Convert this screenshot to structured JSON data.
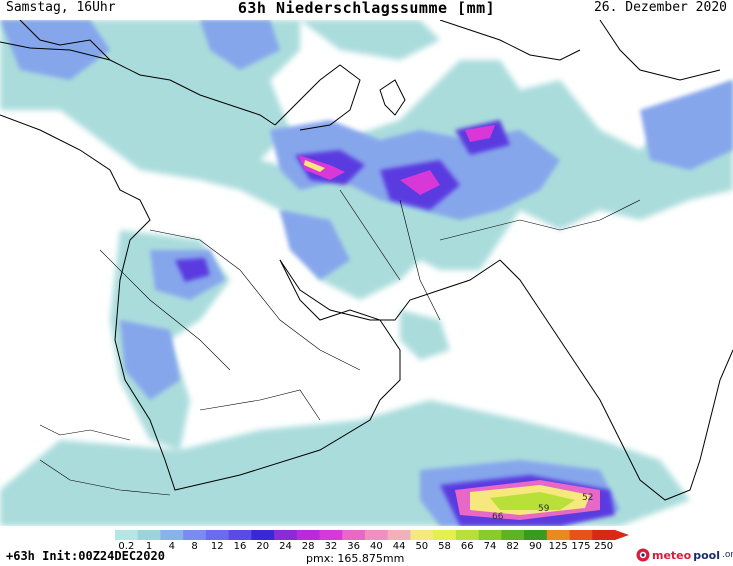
{
  "header": {
    "left": "Samstag, 16Uhr",
    "title": "63h Niederschlagssumme [mm]",
    "right": "26. Dezember 2020"
  },
  "map": {
    "contour_labels": [
      "66",
      "59",
      "52"
    ]
  },
  "colorbar": {
    "labels": [
      "0.2",
      "1",
      "4",
      "8",
      "12",
      "16",
      "20",
      "24",
      "28",
      "32",
      "36",
      "40",
      "44",
      "50",
      "58",
      "66",
      "74",
      "82",
      "90",
      "125",
      "175",
      "250"
    ],
    "colors": [
      "#b4e6e6",
      "#9ad5dc",
      "#86b4e8",
      "#7a8cf0",
      "#6a6af2",
      "#5a4ae8",
      "#3a28d8",
      "#8a2ad8",
      "#b82ae0",
      "#d838d8",
      "#e868c8",
      "#f090c0",
      "#f2b0b8",
      "#f6e87c",
      "#e4f04c",
      "#b8e038",
      "#88cc2a",
      "#5cb424",
      "#3a9a20",
      "#e88a20",
      "#e8501c",
      "#d82818"
    ]
  },
  "footer": {
    "left": "+63h Init:00Z24DEC2020",
    "pmx": "pmx: 165.875mm",
    "logo_a": "meteo",
    "logo_b": "pool",
    "logo_c": ".org"
  }
}
